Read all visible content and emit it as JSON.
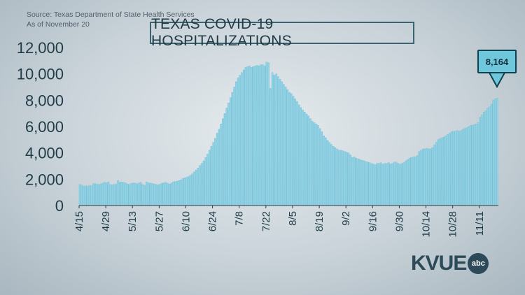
{
  "source": {
    "line1": "Source: Texas Department of State Health Services",
    "line2": "As of November 20"
  },
  "callout": {
    "value": "8,164"
  },
  "logo": {
    "station": "KVUE",
    "network": "abc"
  },
  "colors": {
    "bar": "#8fd3e6",
    "bar_stroke": "#5fb3cc",
    "axis": "#2b3b44",
    "callout_fill": "#6fc7dc",
    "text_dark": "#1f3b46"
  },
  "chart_data": {
    "type": "bar",
    "title": "TEXAS COVID-19 HOSPITALIZATIONS",
    "xlabel": "",
    "ylabel": "",
    "ylim": [
      0,
      12000
    ],
    "yticks": [
      "0",
      "2,000",
      "4,000",
      "6,000",
      "8,000",
      "10,000",
      "12,000"
    ],
    "ytick_values": [
      0,
      2000,
      4000,
      6000,
      8000,
      10000,
      12000
    ],
    "xtick_labels": [
      "4/15",
      "4/29",
      "5/13",
      "5/27",
      "6/10",
      "6/24",
      "7/8",
      "7/22",
      "8/5",
      "8/19",
      "9/2",
      "9/16",
      "9/30",
      "10/14",
      "10/28",
      "11/11"
    ],
    "start_date": "4/15",
    "grid": false,
    "values": [
      1600,
      1550,
      1480,
      1500,
      1450,
      1520,
      1500,
      1650,
      1680,
      1620,
      1600,
      1640,
      1700,
      1760,
      1720,
      1800,
      1600,
      1580,
      1600,
      1620,
      1900,
      1780,
      1800,
      1760,
      1720,
      1640,
      1600,
      1680,
      1720,
      1700,
      1660,
      1720,
      1760,
      1600,
      1540,
      1800,
      1720,
      1700,
      1680,
      1640,
      1600,
      1580,
      1620,
      1700,
      1720,
      1760,
      1700,
      1640,
      1720,
      1800,
      1820,
      1850,
      1900,
      1950,
      2050,
      2100,
      2150,
      2200,
      2300,
      2400,
      2550,
      2700,
      2850,
      3050,
      3200,
      3400,
      3650,
      3900,
      4200,
      4500,
      4800,
      5100,
      5500,
      5800,
      6200,
      6600,
      7000,
      7400,
      7800,
      8200,
      8600,
      9000,
      9400,
      9700,
      9900,
      10100,
      10300,
      10500,
      10550,
      10600,
      10500,
      10550,
      10600,
      10650,
      10600,
      10700,
      10700,
      10600,
      10900,
      10850,
      8900,
      10100,
      9900,
      10000,
      9800,
      9600,
      9400,
      9200,
      9000,
      8800,
      8600,
      8500,
      8300,
      8100,
      7900,
      7650,
      7450,
      7250,
      7100,
      6950,
      6800,
      6600,
      6400,
      6300,
      6200,
      6100,
      5850,
      5600,
      5300,
      5150,
      4950,
      4800,
      4650,
      4500,
      4400,
      4300,
      4200,
      4200,
      4150,
      4100,
      4050,
      4000,
      3850,
      3650,
      3700,
      3600,
      3550,
      3500,
      3450,
      3400,
      3350,
      3300,
      3250,
      3200,
      3150,
      3100,
      3200,
      3200,
      3250,
      3150,
      3200,
      3200,
      3250,
      3150,
      3200,
      3300,
      3300,
      3200,
      3150,
      3200,
      3250,
      3400,
      3500,
      3600,
      3650,
      3700,
      3700,
      3800,
      4100,
      4200,
      4300,
      4300,
      4350,
      4300,
      4300,
      4400,
      4600,
      4800,
      5000,
      5100,
      5150,
      5200,
      5300,
      5400,
      5500,
      5600,
      5650,
      5650,
      5700,
      5650,
      5700,
      5800,
      5850,
      5900,
      6000,
      6100,
      6100,
      6150,
      6200,
      6300,
      6700,
      6900,
      7100,
      7200,
      7400,
      7500,
      7700,
      8000,
      8100,
      8164
    ]
  }
}
